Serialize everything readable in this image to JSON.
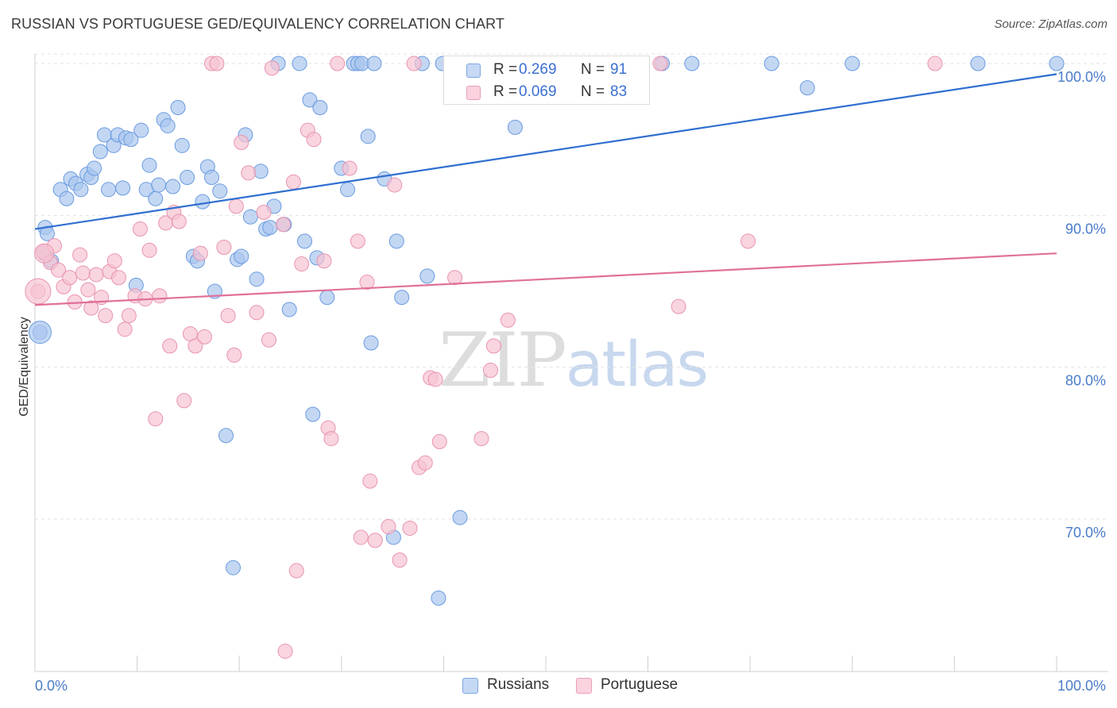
{
  "title": "RUSSIAN VS PORTUGUESE GED/EQUIVALENCY CORRELATION CHART",
  "source": "Source: ZipAtlas.com",
  "watermark": {
    "zip": "ZIP",
    "atlas": "atlas"
  },
  "legend_top": {
    "rows": [
      {
        "r_label": "R =",
        "r_value": "0.269",
        "n_label": "N =",
        "n_value": "91"
      },
      {
        "r_label": "R =",
        "r_value": "0.069",
        "n_label": "N =",
        "n_value": "83"
      }
    ]
  },
  "legend_bottom": {
    "items": [
      "Russians",
      "Portuguese"
    ]
  },
  "colors": {
    "russians_fill": "#a9c6ee",
    "russians_stroke": "#6a9be0",
    "russians_line": "#2f6fd0",
    "portuguese_fill": "#f6c3d2",
    "portuguese_stroke": "#e894b0",
    "portuguese_line": "#e0709a",
    "tick_text": "#4a7cc9",
    "grid": "#e3e3e3"
  },
  "chart_data": {
    "type": "scatter",
    "title": "RUSSIAN VS PORTUGUESE GED/EQUIVALENCY CORRELATION CHART",
    "xlabel": "",
    "ylabel": "GED/Equivalency",
    "xlim": [
      0,
      100
    ],
    "ylim": [
      60.3,
      101.6
    ],
    "x_tick_labels": [
      "0.0%",
      "100.0%"
    ],
    "y_ticks": [
      70,
      80,
      90,
      100
    ],
    "y_tick_labels": [
      "70.0%",
      "80.0%",
      "90.0%",
      "100.0%"
    ],
    "grid": true,
    "legend_position": "top-center",
    "series": [
      {
        "name": "Russians",
        "r": 0.269,
        "n": 91,
        "trend": {
          "x": [
            0,
            100
          ],
          "y": [
            89.1,
            99.3
          ]
        },
        "points": [
          [
            0.5,
            82.3
          ],
          [
            1.0,
            89.2
          ],
          [
            1.2,
            88.8
          ],
          [
            1.6,
            87.0
          ],
          [
            2.5,
            91.7
          ],
          [
            3.1,
            91.1
          ],
          [
            3.5,
            92.4
          ],
          [
            4.0,
            92.1
          ],
          [
            4.5,
            91.7
          ],
          [
            5.1,
            92.7
          ],
          [
            5.5,
            92.5
          ],
          [
            5.8,
            93.1
          ],
          [
            6.4,
            94.2
          ],
          [
            6.8,
            95.3
          ],
          [
            7.2,
            91.7
          ],
          [
            7.7,
            94.6
          ],
          [
            8.1,
            95.3
          ],
          [
            8.6,
            91.8
          ],
          [
            8.9,
            95.1
          ],
          [
            9.4,
            95.0
          ],
          [
            9.9,
            85.4
          ],
          [
            10.4,
            95.6
          ],
          [
            10.9,
            91.7
          ],
          [
            11.2,
            93.3
          ],
          [
            11.8,
            91.1
          ],
          [
            12.1,
            92.0
          ],
          [
            12.6,
            96.3
          ],
          [
            13.0,
            95.9
          ],
          [
            13.5,
            91.9
          ],
          [
            14.0,
            97.1
          ],
          [
            14.4,
            94.6
          ],
          [
            14.9,
            92.5
          ],
          [
            15.5,
            87.3
          ],
          [
            15.9,
            87.0
          ],
          [
            16.4,
            90.9
          ],
          [
            16.9,
            93.2
          ],
          [
            17.3,
            92.5
          ],
          [
            17.6,
            85.0
          ],
          [
            18.1,
            91.6
          ],
          [
            18.7,
            75.5
          ],
          [
            19.4,
            66.8
          ],
          [
            19.8,
            87.1
          ],
          [
            20.2,
            87.3
          ],
          [
            20.6,
            95.3
          ],
          [
            21.1,
            89.9
          ],
          [
            21.7,
            85.8
          ],
          [
            22.1,
            92.9
          ],
          [
            22.6,
            89.1
          ],
          [
            23.0,
            89.2
          ],
          [
            23.4,
            90.6
          ],
          [
            23.8,
            100.0
          ],
          [
            24.4,
            89.4
          ],
          [
            24.9,
            83.8
          ],
          [
            25.9,
            100.0
          ],
          [
            26.4,
            88.3
          ],
          [
            26.9,
            97.6
          ],
          [
            27.2,
            76.9
          ],
          [
            27.6,
            87.2
          ],
          [
            27.9,
            97.1
          ],
          [
            28.6,
            84.6
          ],
          [
            30.0,
            93.1
          ],
          [
            30.6,
            91.7
          ],
          [
            31.2,
            100.0
          ],
          [
            31.6,
            100.0
          ],
          [
            32.0,
            100.0
          ],
          [
            32.6,
            95.2
          ],
          [
            32.9,
            81.6
          ],
          [
            33.2,
            100.0
          ],
          [
            34.2,
            92.4
          ],
          [
            35.1,
            68.8
          ],
          [
            35.4,
            88.3
          ],
          [
            35.9,
            84.6
          ],
          [
            37.9,
            100.0
          ],
          [
            38.4,
            86.0
          ],
          [
            39.5,
            64.8
          ],
          [
            39.9,
            100.0
          ],
          [
            41.2,
            100.0
          ],
          [
            41.6,
            70.1
          ],
          [
            46.0,
            100.0
          ],
          [
            47.0,
            95.8
          ],
          [
            52.3,
            100.0
          ],
          [
            54.2,
            100.0
          ],
          [
            54.7,
            100.0
          ],
          [
            57.0,
            100.0
          ],
          [
            57.2,
            100.0
          ],
          [
            61.4,
            100.0
          ],
          [
            64.3,
            100.0
          ],
          [
            72.1,
            100.0
          ],
          [
            75.6,
            98.4
          ],
          [
            80.0,
            100.0
          ],
          [
            92.3,
            100.0
          ],
          [
            100.0,
            100.0
          ],
          [
            0.9,
            87.5
          ]
        ]
      },
      {
        "name": "Portuguese",
        "r": 0.069,
        "n": 83,
        "trend": {
          "x": [
            0,
            100
          ],
          "y": [
            84.1,
            87.5
          ]
        },
        "points": [
          [
            0.3,
            85.0
          ],
          [
            0.8,
            87.6
          ],
          [
            1.5,
            86.9
          ],
          [
            1.9,
            88.0
          ],
          [
            2.3,
            86.4
          ],
          [
            2.8,
            85.3
          ],
          [
            3.4,
            85.9
          ],
          [
            3.9,
            84.3
          ],
          [
            4.4,
            87.4
          ],
          [
            4.7,
            86.2
          ],
          [
            5.2,
            85.1
          ],
          [
            5.5,
            83.9
          ],
          [
            6.0,
            86.1
          ],
          [
            6.5,
            84.6
          ],
          [
            6.9,
            83.4
          ],
          [
            7.3,
            86.3
          ],
          [
            7.8,
            87.0
          ],
          [
            8.2,
            85.9
          ],
          [
            8.8,
            82.5
          ],
          [
            9.2,
            83.4
          ],
          [
            9.8,
            84.7
          ],
          [
            10.3,
            89.1
          ],
          [
            10.8,
            84.5
          ],
          [
            11.2,
            87.7
          ],
          [
            11.8,
            76.6
          ],
          [
            12.2,
            84.7
          ],
          [
            12.8,
            89.5
          ],
          [
            13.2,
            81.4
          ],
          [
            13.6,
            90.2
          ],
          [
            14.1,
            89.6
          ],
          [
            14.6,
            77.8
          ],
          [
            15.2,
            82.2
          ],
          [
            15.7,
            81.4
          ],
          [
            16.2,
            87.5
          ],
          [
            16.6,
            82.0
          ],
          [
            17.3,
            100.0
          ],
          [
            17.8,
            100.0
          ],
          [
            18.5,
            87.9
          ],
          [
            18.9,
            83.4
          ],
          [
            19.5,
            80.8
          ],
          [
            19.7,
            90.6
          ],
          [
            20.2,
            94.8
          ],
          [
            20.9,
            92.8
          ],
          [
            21.7,
            83.6
          ],
          [
            22.4,
            90.2
          ],
          [
            22.9,
            81.8
          ],
          [
            23.2,
            99.7
          ],
          [
            24.3,
            89.4
          ],
          [
            25.3,
            92.2
          ],
          [
            25.6,
            66.6
          ],
          [
            26.1,
            86.8
          ],
          [
            26.7,
            95.6
          ],
          [
            27.3,
            95.0
          ],
          [
            28.3,
            87.0
          ],
          [
            28.7,
            76.0
          ],
          [
            29.0,
            75.3
          ],
          [
            29.6,
            100.0
          ],
          [
            30.8,
            93.1
          ],
          [
            31.6,
            88.3
          ],
          [
            31.9,
            68.8
          ],
          [
            32.5,
            85.6
          ],
          [
            32.8,
            72.5
          ],
          [
            33.3,
            68.6
          ],
          [
            34.6,
            69.5
          ],
          [
            35.2,
            92.0
          ],
          [
            35.7,
            67.3
          ],
          [
            36.7,
            69.4
          ],
          [
            37.1,
            100.0
          ],
          [
            37.6,
            73.4
          ],
          [
            38.2,
            73.7
          ],
          [
            38.7,
            79.3
          ],
          [
            39.2,
            79.2
          ],
          [
            39.6,
            75.1
          ],
          [
            41.1,
            85.9
          ],
          [
            43.7,
            75.3
          ],
          [
            44.6,
            79.8
          ],
          [
            44.9,
            81.4
          ],
          [
            46.3,
            83.1
          ],
          [
            61.2,
            100.0
          ],
          [
            63.0,
            84.0
          ],
          [
            69.8,
            88.3
          ],
          [
            88.1,
            100.0
          ],
          [
            24.5,
            61.3
          ]
        ]
      }
    ]
  }
}
